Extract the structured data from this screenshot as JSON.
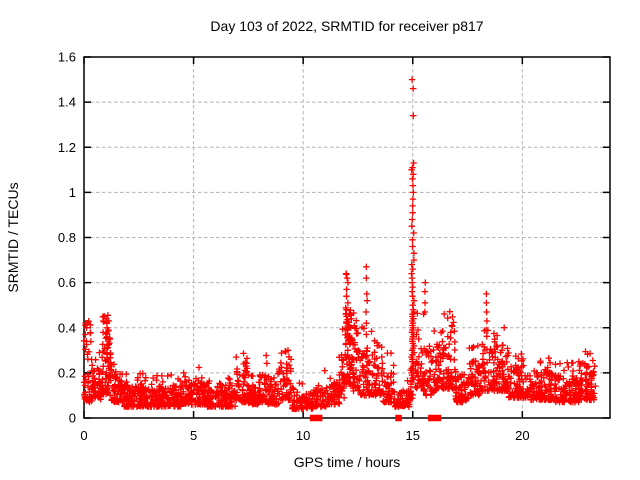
{
  "chart_data": {
    "type": "scatter",
    "title": "Day 103 of 2022, SRMTID for receiver p817",
    "xlabel": "GPS time / hours",
    "ylabel": "SRMTID / TECUs",
    "xlim": [
      0,
      24
    ],
    "ylim": [
      0,
      1.6
    ],
    "xticks": {
      "values": [
        0,
        5,
        10,
        15,
        20
      ],
      "labels": [
        "0",
        "5",
        "10",
        "15",
        "20"
      ]
    },
    "yticks": {
      "values": [
        0,
        0.2,
        0.4,
        0.6,
        0.8,
        1.0,
        1.2,
        1.4,
        1.6
      ],
      "labels": [
        "0",
        "0.2",
        "0.4",
        "0.6",
        "0.8",
        "1",
        "1.2",
        "1.4",
        "1.6"
      ]
    },
    "grid": true,
    "legend": "none",
    "marker": {
      "shape": "plus",
      "color": "#ff0000",
      "size": 6.4,
      "stroke_width": 1.3
    },
    "zero_marker": {
      "shape": "filled-square",
      "color": "#ff0000",
      "size": 6.5
    },
    "colors": {
      "points": "#ff0000",
      "grid": "#b3b3b3",
      "border": "#000000",
      "background": "#ffffff",
      "text": "#000000"
    },
    "series": [
      {
        "name": "srmtid",
        "kind": "generated-scatter",
        "seed": 20220413,
        "bands": [
          {
            "t0": 0.0,
            "t1": 0.35,
            "n": 40,
            "lo": 0.07,
            "hi": 0.4,
            "peak": 0.43
          },
          {
            "t0": 0.35,
            "t1": 0.85,
            "n": 55,
            "lo": 0.08,
            "hi": 0.22,
            "peak": 0.3
          },
          {
            "t0": 0.85,
            "t1": 1.25,
            "n": 70,
            "lo": 0.1,
            "hi": 0.38,
            "peak": 0.46
          },
          {
            "t0": 1.25,
            "t1": 1.75,
            "n": 55,
            "lo": 0.07,
            "hi": 0.2,
            "peak": 0.24
          },
          {
            "t0": 1.75,
            "t1": 3.0,
            "n": 130,
            "lo": 0.05,
            "hi": 0.15,
            "peak": 0.22
          },
          {
            "t0": 3.0,
            "t1": 4.4,
            "n": 150,
            "lo": 0.05,
            "hi": 0.14,
            "peak": 0.2
          },
          {
            "t0": 4.4,
            "t1": 5.6,
            "n": 120,
            "lo": 0.06,
            "hi": 0.17,
            "peak": 0.23
          },
          {
            "t0": 5.6,
            "t1": 6.9,
            "n": 130,
            "lo": 0.05,
            "hi": 0.14,
            "peak": 0.19
          },
          {
            "t0": 6.9,
            "t1": 7.5,
            "n": 65,
            "lo": 0.07,
            "hi": 0.22,
            "peak": 0.29
          },
          {
            "t0": 7.5,
            "t1": 8.0,
            "n": 50,
            "lo": 0.06,
            "hi": 0.15,
            "peak": 0.2
          },
          {
            "t0": 8.0,
            "t1": 8.4,
            "n": 40,
            "lo": 0.07,
            "hi": 0.22,
            "peak": 0.3
          },
          {
            "t0": 8.4,
            "t1": 8.9,
            "n": 50,
            "lo": 0.06,
            "hi": 0.15,
            "peak": 0.2
          },
          {
            "t0": 8.9,
            "t1": 9.45,
            "n": 55,
            "lo": 0.08,
            "hi": 0.26,
            "peak": 0.33
          },
          {
            "t0": 9.45,
            "t1": 10.45,
            "n": 75,
            "lo": 0.04,
            "hi": 0.11,
            "peak": 0.16
          },
          {
            "t0": 10.45,
            "t1": 11.05,
            "n": 45,
            "lo": 0.05,
            "hi": 0.13,
            "peak": 0.22
          },
          {
            "t0": 11.05,
            "t1": 11.65,
            "n": 55,
            "lo": 0.06,
            "hi": 0.17,
            "peak": 0.22
          },
          {
            "t0": 11.65,
            "t1": 11.9,
            "n": 28,
            "lo": 0.08,
            "hi": 0.28,
            "peak": 0.4
          },
          {
            "t0": 11.9,
            "t1": 12.2,
            "n": 55,
            "lo": 0.15,
            "hi": 0.5,
            "peak": 0.64
          },
          {
            "t0": 12.2,
            "t1": 12.6,
            "n": 50,
            "lo": 0.12,
            "hi": 0.38,
            "peak": 0.48
          },
          {
            "t0": 12.6,
            "t1": 13.15,
            "n": 48,
            "lo": 0.1,
            "hi": 0.3,
            "peak": 0.42
          },
          {
            "t0": 13.15,
            "t1": 13.65,
            "n": 50,
            "lo": 0.1,
            "hi": 0.28,
            "peak": 0.35
          },
          {
            "t0": 13.65,
            "t1": 14.15,
            "n": 48,
            "lo": 0.07,
            "hi": 0.2,
            "peak": 0.3
          },
          {
            "t0": 14.15,
            "t1": 14.85,
            "n": 60,
            "lo": 0.05,
            "hi": 0.12,
            "peak": 0.17
          },
          {
            "t0": 14.85,
            "t1": 15.0,
            "n": 14,
            "lo": 0.08,
            "hi": 0.22,
            "peak": 0.3
          },
          {
            "t0": 15.1,
            "t1": 15.5,
            "n": 35,
            "lo": 0.12,
            "hi": 0.4,
            "peak": 0.55
          },
          {
            "t0": 15.5,
            "t1": 16.05,
            "n": 45,
            "lo": 0.1,
            "hi": 0.32,
            "peak": 0.45
          },
          {
            "t0": 16.05,
            "t1": 16.4,
            "n": 38,
            "lo": 0.13,
            "hi": 0.38,
            "peak": 0.48
          },
          {
            "t0": 16.4,
            "t1": 16.95,
            "n": 60,
            "lo": 0.13,
            "hi": 0.42,
            "peak": 0.5
          },
          {
            "t0": 16.95,
            "t1": 17.55,
            "n": 55,
            "lo": 0.07,
            "hi": 0.2,
            "peak": 0.26
          },
          {
            "t0": 17.55,
            "t1": 18.25,
            "n": 62,
            "lo": 0.1,
            "hi": 0.26,
            "peak": 0.33
          },
          {
            "t0": 18.25,
            "t1": 19.35,
            "n": 115,
            "lo": 0.12,
            "hi": 0.32,
            "peak": 0.42
          },
          {
            "t0": 19.35,
            "t1": 20.2,
            "n": 85,
            "lo": 0.09,
            "hi": 0.24,
            "peak": 0.3
          },
          {
            "t0": 20.2,
            "t1": 21.5,
            "n": 125,
            "lo": 0.08,
            "hi": 0.21,
            "peak": 0.27
          },
          {
            "t0": 21.5,
            "t1": 22.6,
            "n": 110,
            "lo": 0.07,
            "hi": 0.19,
            "peak": 0.25
          },
          {
            "t0": 22.6,
            "t1": 23.35,
            "n": 85,
            "lo": 0.08,
            "hi": 0.23,
            "peak": 0.3
          }
        ],
        "columns": [
          {
            "t": 0.08,
            "jitter": 0.04,
            "ys": [
              0.42,
              0.4,
              0.37,
              0.34
            ]
          },
          {
            "t": 1.05,
            "jitter": 0.05,
            "ys": [
              0.455,
              0.44,
              0.42,
              0.4,
              0.38,
              0.36
            ]
          },
          {
            "t": 12.0,
            "jitter": 0.05,
            "ys": [
              0.64,
              0.62,
              0.6,
              0.57,
              0.54,
              0.51,
              0.48,
              0.45,
              0.42,
              0.39,
              0.36,
              0.33,
              0.3,
              0.27
            ]
          },
          {
            "t": 12.9,
            "jitter": 0.04,
            "ys": [
              0.67,
              0.62,
              0.55,
              0.52,
              0.47,
              0.42,
              0.37,
              0.31,
              0.27
            ]
          },
          {
            "t": 15.0,
            "jitter": 0.06,
            "ys": [
              1.5,
              1.46,
              1.34,
              1.13,
              1.11,
              1.1,
              1.08,
              1.06,
              1.03,
              1.0,
              0.97,
              0.94,
              0.91,
              0.88,
              0.85,
              0.82,
              0.79,
              0.76,
              0.73,
              0.7,
              0.68,
              0.66,
              0.64,
              0.62,
              0.6,
              0.58,
              0.56,
              0.54,
              0.52,
              0.5,
              0.48,
              0.47,
              0.46,
              0.45,
              0.44,
              0.43,
              0.42,
              0.41,
              0.4,
              0.39,
              0.38,
              0.37,
              0.36,
              0.35,
              0.34,
              0.33,
              0.32,
              0.31,
              0.3,
              0.29,
              0.28,
              0.27,
              0.26,
              0.25,
              0.24,
              0.23,
              0.22,
              0.21,
              0.2,
              0.19,
              0.18,
              0.17,
              0.16
            ]
          },
          {
            "t": 15.55,
            "jitter": 0.05,
            "ys": [
              0.6,
              0.56,
              0.51,
              0.47
            ]
          },
          {
            "t": 18.35,
            "jitter": 0.04,
            "ys": [
              0.55,
              0.51,
              0.47,
              0.43,
              0.39
            ]
          }
        ]
      },
      {
        "name": "zero-flags",
        "kind": "squares-at-zero",
        "y": 0,
        "points_t": [
          10.45,
          10.73,
          14.35,
          15.85,
          15.95,
          16.05,
          16.15
        ]
      }
    ]
  }
}
